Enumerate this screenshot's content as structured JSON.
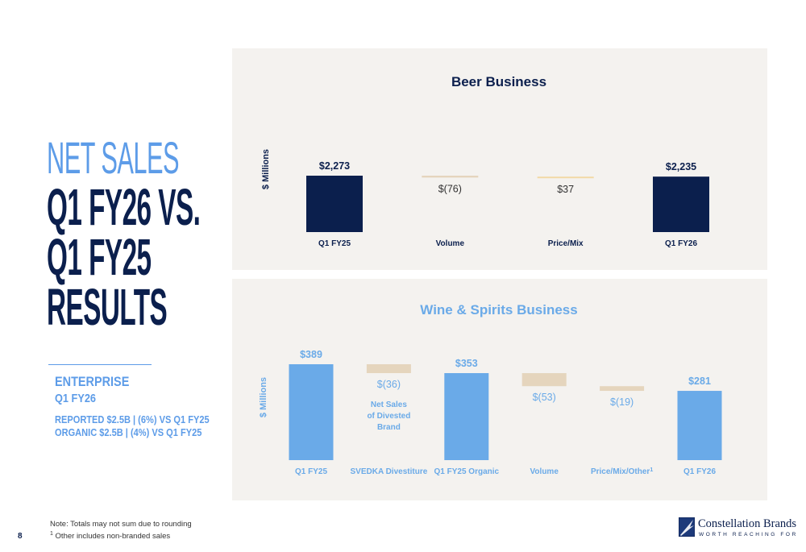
{
  "title": {
    "line1": "NET SALES",
    "line2": "Q1 FY26 VS.",
    "line3": "Q1 FY25",
    "line4": "RESULTS"
  },
  "enterprise": {
    "heading": "ENTERPRISE",
    "period": "Q1 FY26",
    "reported": "REPORTED $2.5B | (6%) VS Q1 FY25",
    "organic": "ORGANIC $2.5B | (4%)  VS Q1 FY25"
  },
  "notes": {
    "line1": "Note: Totals may not sum due to rounding",
    "line2_sup": "1",
    "line2": " Other includes non-branded sales"
  },
  "page_number": "8",
  "logo": {
    "name": "Constellation Brands",
    "tagline": "WORTH REACHING FOR"
  },
  "colors": {
    "navy": "#0b1f4d",
    "light_blue": "#6aaae8",
    "tan": "#e5d5bd",
    "pale_gold": "#f2d9a6",
    "panel": "#f4f2ef"
  },
  "chart_data": [
    {
      "type": "bar",
      "subtype": "waterfall",
      "title": "Beer Business",
      "ylabel": "$ Millions",
      "categories": [
        "Q1 FY25",
        "Volume",
        "Price/Mix",
        "Q1 FY26"
      ],
      "values": [
        2273,
        -76,
        37,
        2235
      ],
      "kinds": [
        "total",
        "delta",
        "delta",
        "total"
      ],
      "labels": [
        "$2,273",
        "$(76)",
        "$37",
        "$2,235"
      ],
      "annotations": []
    },
    {
      "type": "bar",
      "subtype": "waterfall",
      "title": "Wine & Spirits Business",
      "ylabel": "$ Millions",
      "categories": [
        "Q1 FY25",
        "SVEDKA Divestiture",
        "Q1 FY25 Organic",
        "Volume",
        "Price/Mix/Other",
        "Q1 FY26"
      ],
      "category_superscripts": [
        "",
        "",
        "",
        "",
        "1",
        ""
      ],
      "values": [
        389,
        -36,
        353,
        -53,
        -19,
        281
      ],
      "kinds": [
        "total",
        "delta",
        "total",
        "delta",
        "delta",
        "total"
      ],
      "labels": [
        "$389",
        "$(36)",
        "$353",
        "$(53)",
        "$(19)",
        "$281"
      ],
      "annotations": [
        "Net Sales",
        "of Divested",
        "Brand"
      ]
    }
  ]
}
